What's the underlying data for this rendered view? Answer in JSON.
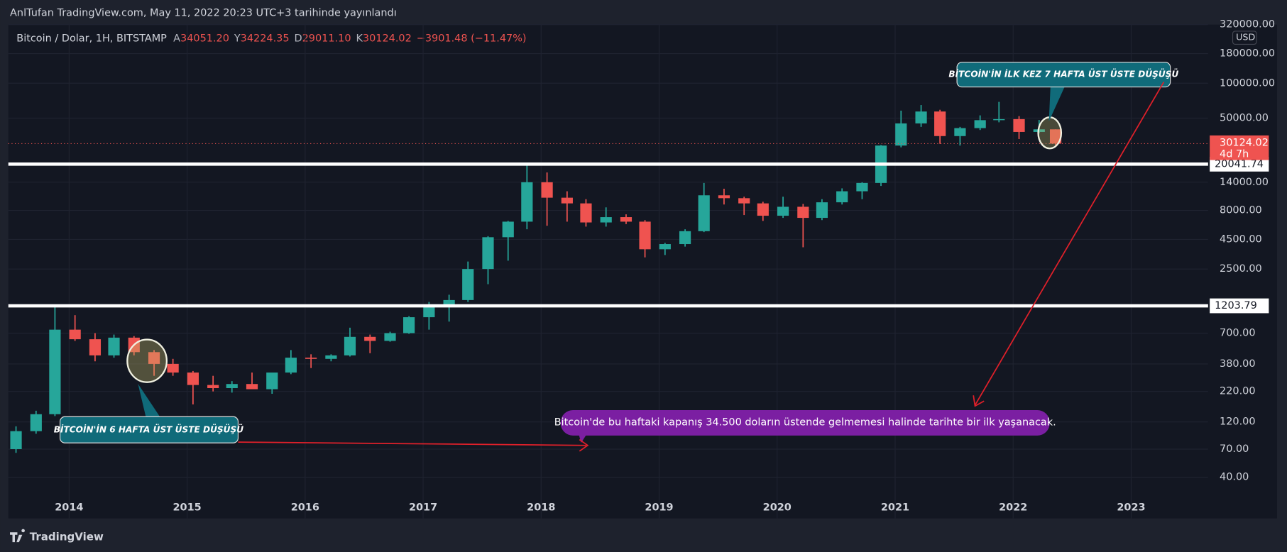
{
  "header": {
    "publisher": "AnlTufan TradingView.com, May 11, 2022 20:23 UTC+3 tarihinde yayınlandı",
    "symbol": "Bitcoin / Dolar, 1H, BITSTAMP",
    "ohlc": [
      {
        "key": "A",
        "value": "34051.20"
      },
      {
        "key": "Y",
        "value": "34224.35"
      },
      {
        "key": "D",
        "value": "29011.10"
      },
      {
        "key": "K",
        "value": "30124.02"
      }
    ],
    "change": "−3901.48 (−11.47%)"
  },
  "footer": {
    "brand": "TradingView"
  },
  "chart_data": {
    "type": "candlestick",
    "log_scale": true,
    "grid": true,
    "currency": "USD",
    "countdown": "4d 7h",
    "up_color": "#26a69a",
    "down_color": "#ef5350",
    "x": [
      2013.55,
      2013.72,
      2013.88,
      2014.05,
      2014.22,
      2014.38,
      2014.55,
      2014.72,
      2014.88,
      2015.05,
      2015.22,
      2015.38,
      2015.55,
      2015.72,
      2015.88,
      2016.05,
      2016.22,
      2016.38,
      2016.55,
      2016.72,
      2016.88,
      2017.05,
      2017.22,
      2017.38,
      2017.55,
      2017.72,
      2017.88,
      2018.05,
      2018.22,
      2018.38,
      2018.55,
      2018.72,
      2018.88,
      2019.05,
      2019.22,
      2019.38,
      2019.55,
      2019.72,
      2019.88,
      2020.05,
      2020.22,
      2020.38,
      2020.55,
      2020.72,
      2020.88,
      2021.05,
      2021.22,
      2021.38,
      2021.55,
      2021.72,
      2021.88,
      2022.05,
      2022.22,
      2022.36
    ],
    "open": [
      70,
      100,
      140,
      750,
      620,
      450,
      640,
      480,
      380,
      320,
      250,
      235,
      255,
      230,
      320,
      430,
      420,
      450,
      650,
      600,
      700,
      960,
      1200,
      1350,
      2500,
      4700,
      6400,
      14000,
      10300,
      9200,
      6300,
      7000,
      6400,
      3700,
      4100,
      5300,
      10800,
      10200,
      9200,
      7200,
      8600,
      6900,
      9400,
      11700,
      13800,
      29000,
      45000,
      57000,
      35000,
      41000,
      48000,
      49000,
      38000,
      40000
    ],
    "high": [
      110,
      150,
      1180,
      1000,
      700,
      680,
      660,
      500,
      420,
      330,
      300,
      270,
      320,
      250,
      500,
      460,
      460,
      780,
      680,
      720,
      980,
      1300,
      1500,
      2900,
      4800,
      6500,
      19800,
      17000,
      11700,
      10000,
      8500,
      7400,
      6600,
      4200,
      5500,
      13800,
      12300,
      10500,
      9500,
      10500,
      9100,
      10000,
      12400,
      14000,
      29300,
      58000,
      64800,
      59000,
      42000,
      52800,
      69000,
      52000,
      48200,
      40000
    ],
    "low": [
      65,
      95,
      135,
      600,
      400,
      430,
      450,
      300,
      300,
      170,
      220,
      215,
      250,
      210,
      310,
      350,
      400,
      440,
      470,
      590,
      690,
      750,
      880,
      1300,
      1850,
      2950,
      5500,
      5900,
      6400,
      5800,
      5800,
      6100,
      3150,
      3300,
      3900,
      5200,
      9000,
      7300,
      6500,
      6900,
      3850,
      6600,
      9000,
      10000,
      13000,
      28000,
      42000,
      30000,
      29000,
      39500,
      46000,
      33000,
      37000,
      29000
    ],
    "close": [
      100,
      140,
      750,
      620,
      450,
      640,
      480,
      380,
      320,
      250,
      235,
      255,
      230,
      320,
      430,
      420,
      450,
      650,
      600,
      700,
      960,
      1200,
      1350,
      2500,
      4700,
      6400,
      14000,
      10300,
      9200,
      6300,
      7000,
      6400,
      3700,
      4100,
      5300,
      10800,
      10200,
      9200,
      7200,
      8600,
      6900,
      9400,
      11700,
      13800,
      29000,
      45000,
      57000,
      35000,
      41000,
      48000,
      49000,
      38000,
      40000,
      30124.02
    ],
    "xlim": [
      2013.485,
      2023.652
    ],
    "xticks": [
      2014,
      2015,
      2016,
      2017,
      2018,
      2019,
      2020,
      2021,
      2022,
      2023
    ],
    "ylim": [
      17.7,
      320000
    ],
    "yticks": [
      {
        "value": 40,
        "label": "40.00"
      },
      {
        "value": 70,
        "label": "70.00"
      },
      {
        "value": 120,
        "label": "120.00"
      },
      {
        "value": 220,
        "label": "220.00"
      },
      {
        "value": 380,
        "label": "380.00"
      },
      {
        "value": 700,
        "label": "700.00"
      },
      {
        "value": 2500,
        "label": "2500.00"
      },
      {
        "value": 4500,
        "label": "4500.00"
      },
      {
        "value": 8000,
        "label": "8000.00"
      },
      {
        "value": 14000,
        "label": "14000.00"
      },
      {
        "value": 50000,
        "label": "50000.00"
      },
      {
        "value": 100000,
        "label": "100000.00"
      },
      {
        "value": 180000,
        "label": "180000.00"
      },
      {
        "value": 320000,
        "label": "320000.00"
      }
    ],
    "hlines": [
      20041.74,
      1203.79
    ],
    "annotations": [
      "BİTCOİN'İN İLK KEZ 7 HAFTA ÜST ÜSTE DÜŞÜŞÜ",
      "BİTCOİN'İN 6 HAFTA ÜST ÜSTE DÜŞÜŞÜ",
      "Bitcoin'de bu haftaki kapanış 34.500 doların üstende gelmemesi halinde tarihte bir ilk yaşanacak."
    ]
  }
}
